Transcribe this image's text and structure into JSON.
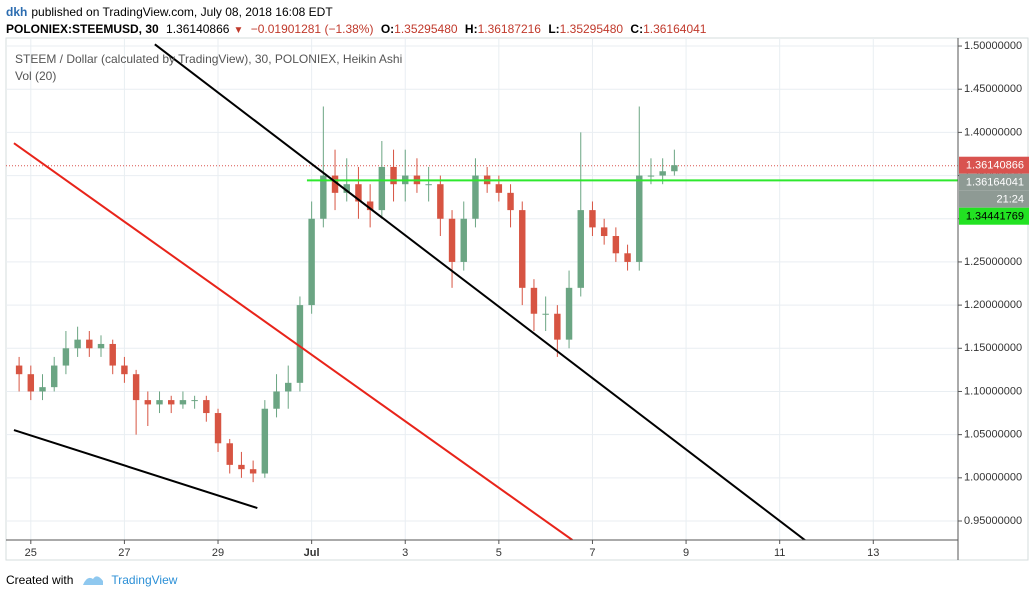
{
  "header": {
    "author": "dkh",
    "published": "published on TradingView.com, July 08, 2018 16:08 EDT",
    "symbol": "POLONIEX:STEEMUSD, 30",
    "price": "1.36140866",
    "change": "−0.01901281 (−1.38%)",
    "ohlc": [
      {
        "label": "O:",
        "value": "1.35295480"
      },
      {
        "label": "H:",
        "value": "1.36187216"
      },
      {
        "label": "L:",
        "value": "1.35295480"
      },
      {
        "label": "C:",
        "value": "1.36164041"
      }
    ]
  },
  "footer": {
    "created": "Created with",
    "brand": "TradingView"
  },
  "chart_data": {
    "type": "candlestick",
    "title": "STEEM / Dollar (calculated by TradingView), 30, POLONIEX, Heikin Ashi",
    "subtitle": "Vol (20)",
    "up_color": "#6ba583",
    "down_color": "#d75442",
    "grid": true,
    "x": [
      -0.25,
      0,
      0.25,
      0.5,
      0.75,
      1,
      1.25,
      1.5,
      1.75,
      2,
      2.25,
      2.5,
      2.75,
      3,
      3.25,
      3.5,
      3.75,
      4,
      4.25,
      4.5,
      4.75,
      5,
      5.25,
      5.5,
      5.75,
      6,
      6.25,
      6.5,
      6.75,
      7,
      7.25,
      7.5,
      7.75,
      8,
      8.25,
      8.5,
      8.75,
      9,
      9.25,
      9.5,
      9.75,
      10,
      10.25,
      10.5,
      10.75,
      11,
      11.25,
      11.5,
      11.75,
      12,
      12.25,
      12.5,
      12.75,
      13,
      13.25,
      13.5,
      13.75
    ],
    "open": [
      1.13,
      1.12,
      1.1,
      1.105,
      1.13,
      1.15,
      1.16,
      1.15,
      1.155,
      1.13,
      1.12,
      1.09,
      1.085,
      1.09,
      1.085,
      1.09,
      1.09,
      1.075,
      1.04,
      1.015,
      1.01,
      1.005,
      1.08,
      1.1,
      1.11,
      1.2,
      1.3,
      1.35,
      1.33,
      1.34,
      1.32,
      1.31,
      1.36,
      1.34,
      1.35,
      1.34,
      1.34,
      1.3,
      1.25,
      1.3,
      1.35,
      1.34,
      1.33,
      1.31,
      1.22,
      1.19,
      1.19,
      1.16,
      1.22,
      1.31,
      1.29,
      1.28,
      1.26,
      1.25,
      1.35,
      1.35,
      1.355
    ],
    "high": [
      1.14,
      1.13,
      1.12,
      1.14,
      1.17,
      1.175,
      1.17,
      1.165,
      1.16,
      1.14,
      1.125,
      1.1,
      1.1,
      1.095,
      1.1,
      1.095,
      1.095,
      1.08,
      1.045,
      1.03,
      1.02,
      1.09,
      1.12,
      1.13,
      1.21,
      1.32,
      1.43,
      1.38,
      1.37,
      1.36,
      1.34,
      1.39,
      1.38,
      1.38,
      1.37,
      1.36,
      1.35,
      1.31,
      1.32,
      1.37,
      1.36,
      1.35,
      1.34,
      1.32,
      1.23,
      1.21,
      1.2,
      1.24,
      1.4,
      1.32,
      1.3,
      1.29,
      1.27,
      1.43,
      1.37,
      1.37,
      1.38
    ],
    "low": [
      1.1,
      1.09,
      1.09,
      1.1,
      1.12,
      1.14,
      1.14,
      1.14,
      1.12,
      1.11,
      1.05,
      1.06,
      1.075,
      1.075,
      1.08,
      1.08,
      1.065,
      1.03,
      1.005,
      1.0,
      0.995,
      1.0,
      1.07,
      1.08,
      1.1,
      1.19,
      1.29,
      1.31,
      1.32,
      1.3,
      1.29,
      1.3,
      1.32,
      1.32,
      1.33,
      1.32,
      1.28,
      1.22,
      1.24,
      1.29,
      1.33,
      1.32,
      1.29,
      1.2,
      1.17,
      1.17,
      1.14,
      1.15,
      1.21,
      1.28,
      1.27,
      1.25,
      1.24,
      1.24,
      1.34,
      1.34,
      1.35
    ],
    "close": [
      1.12,
      1.1,
      1.105,
      1.13,
      1.15,
      1.16,
      1.15,
      1.155,
      1.13,
      1.12,
      1.09,
      1.085,
      1.09,
      1.085,
      1.09,
      1.09,
      1.075,
      1.04,
      1.015,
      1.01,
      1.005,
      1.08,
      1.1,
      1.11,
      1.2,
      1.3,
      1.35,
      1.33,
      1.34,
      1.32,
      1.31,
      1.36,
      1.34,
      1.35,
      1.34,
      1.34,
      1.3,
      1.25,
      1.3,
      1.35,
      1.34,
      1.33,
      1.31,
      1.22,
      1.19,
      1.19,
      1.16,
      1.22,
      1.31,
      1.29,
      1.28,
      1.26,
      1.25,
      1.35,
      1.35,
      1.355,
      1.362
    ],
    "xlim": [
      -0.53,
      19.81
    ],
    "xticks": [
      {
        "value": 0,
        "label": "25"
      },
      {
        "value": 2,
        "label": "27"
      },
      {
        "value": 4,
        "label": "29"
      },
      {
        "value": 6,
        "label": "Jul"
      },
      {
        "value": 8,
        "label": "3"
      },
      {
        "value": 10,
        "label": "5"
      },
      {
        "value": 12,
        "label": "7"
      },
      {
        "value": 14,
        "label": "9"
      },
      {
        "value": 16,
        "label": "11"
      },
      {
        "value": 18,
        "label": "13"
      }
    ],
    "ylim": [
      0.928,
      1.5093
    ],
    "yticks": [
      {
        "value": 0.95,
        "label": "0.95000000"
      },
      {
        "value": 1.0,
        "label": "1.00000000"
      },
      {
        "value": 1.05,
        "label": "1.05000000"
      },
      {
        "value": 1.1,
        "label": "1.10000000"
      },
      {
        "value": 1.15,
        "label": "1.15000000"
      },
      {
        "value": 1.2,
        "label": "1.20000000"
      },
      {
        "value": 1.25,
        "label": "1.25000000"
      },
      {
        "value": 1.3,
        "label": "1.30000000"
      },
      {
        "value": 1.35,
        "label": "1.35000000"
      },
      {
        "value": 1.4,
        "label": "1.40000000"
      },
      {
        "value": 1.45,
        "label": "1.45000000"
      },
      {
        "value": 1.5,
        "label": "1.50000000"
      }
    ],
    "trend_lines": [
      {
        "color": "#000000",
        "points": [
          [
            2.65,
            1.502
          ],
          [
            16.56,
            0.927
          ]
        ]
      },
      {
        "color": "#e8241a",
        "points": [
          [
            -0.36,
            1.3875
          ],
          [
            11.57,
            0.928
          ]
        ]
      },
      {
        "color": "#000000",
        "points": [
          [
            -0.36,
            1.0553
          ],
          [
            4.84,
            0.965
          ]
        ]
      }
    ],
    "horizontal_lines": [
      {
        "value": 1.34441769,
        "from": 5.9,
        "color": "#2ee82e"
      }
    ],
    "price_labels": [
      {
        "value": 1.36140866,
        "color": "#d9534f"
      },
      {
        "value": 1.36164041,
        "color": "#8e9a94"
      }
    ],
    "countdown": "21:24",
    "countdown_color": "#8e9a94",
    "level_label": {
      "value": 1.34441769,
      "color": "#22e222"
    }
  }
}
